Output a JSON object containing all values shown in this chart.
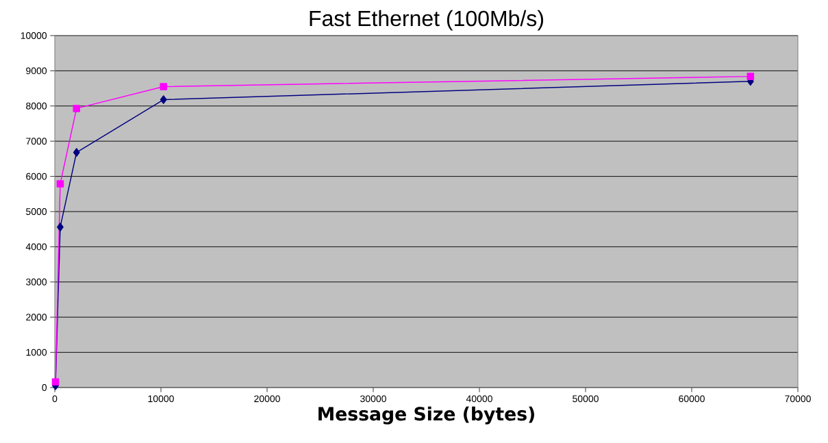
{
  "chart_data": {
    "type": "line",
    "title": "Fast Ethernet (100Mb/s)",
    "xlabel": "Message Size (bytes)",
    "xlim": [
      0,
      70000
    ],
    "ylim": [
      0,
      10000
    ],
    "xticks": [
      0,
      10000,
      20000,
      30000,
      40000,
      50000,
      60000,
      70000
    ],
    "yticks": [
      0,
      1000,
      2000,
      3000,
      4000,
      5000,
      6000,
      7000,
      8000,
      9000,
      10000
    ],
    "grid": "y",
    "series": [
      {
        "color": "#000080",
        "marker": "diamond",
        "x": [
          64,
          512,
          2048,
          10240,
          65536
        ],
        "values": [
          50,
          4560,
          6680,
          8180,
          8700
        ]
      },
      {
        "color": "#ff00ff",
        "marker": "square",
        "x": [
          64,
          512,
          2048,
          10240,
          65536
        ],
        "values": [
          160,
          5790,
          7930,
          8550,
          8840
        ]
      }
    ]
  }
}
